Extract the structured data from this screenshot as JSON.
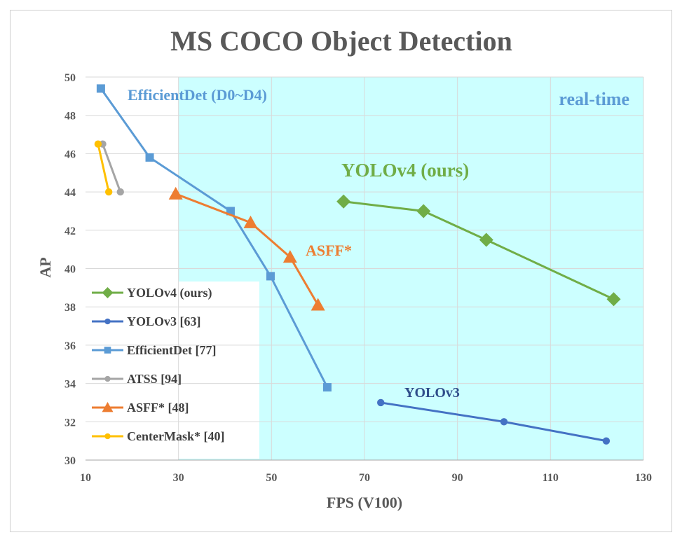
{
  "chart_data": {
    "type": "line",
    "title": "MS COCO Object Detection",
    "xlabel": "FPS (V100)",
    "ylabel": "AP",
    "xlim": [
      10,
      130
    ],
    "ylim": [
      30,
      50
    ],
    "xticks": [
      10,
      30,
      50,
      70,
      90,
      110,
      130
    ],
    "yticks": [
      30,
      32,
      34,
      36,
      38,
      40,
      42,
      44,
      46,
      48,
      50
    ],
    "grid": true,
    "legend_position": "lower-left",
    "realtime_region": {
      "x_start": 30,
      "label": "real-time",
      "color": "#ccffff"
    },
    "series": [
      {
        "name": "YOLOv4 (ours)",
        "color": "#70ad47",
        "marker": "diamond",
        "x": [
          65.5,
          82.7,
          96.2,
          123.6
        ],
        "y": [
          43.5,
          43.0,
          41.5,
          38.4
        ]
      },
      {
        "name": "YOLOv3 [63]",
        "color": "#4472c4",
        "marker": "circle",
        "x": [
          73.5,
          100,
          122
        ],
        "y": [
          33.0,
          32.0,
          31.0
        ]
      },
      {
        "name": "EfficientDet [77]",
        "color": "#5b9bd5",
        "marker": "square",
        "x": [
          13.3,
          23.8,
          41.2,
          49.8,
          62.0
        ],
        "y": [
          49.4,
          45.8,
          43.0,
          39.6,
          33.8
        ]
      },
      {
        "name": "ATSS [94]",
        "color": "#a5a5a5",
        "marker": "circle",
        "x": [
          13.7,
          17.5
        ],
        "y": [
          46.5,
          44.0
        ]
      },
      {
        "name": "ASFF* [48]",
        "color": "#ed7d31",
        "marker": "triangle",
        "x": [
          29.4,
          45.5,
          54.0,
          60.0
        ],
        "y": [
          43.9,
          42.4,
          40.6,
          38.1
        ]
      },
      {
        "name": "CenterMask* [40]",
        "color": "#ffc000",
        "marker": "circle",
        "x": [
          12.7,
          15.0
        ],
        "y": [
          46.5,
          44.0
        ]
      }
    ],
    "annotations": [
      {
        "text": "EfficientDet (D0~D4)",
        "color": "#5b9bd5"
      },
      {
        "text": "real-time",
        "color": "#5b9bd5"
      },
      {
        "text": "YOLOv4 (ours)",
        "color": "#70ad47"
      },
      {
        "text": "ASFF*",
        "color": "#ed7d31"
      },
      {
        "text": "YOLOv3",
        "color": "#2f4d8a"
      }
    ]
  }
}
